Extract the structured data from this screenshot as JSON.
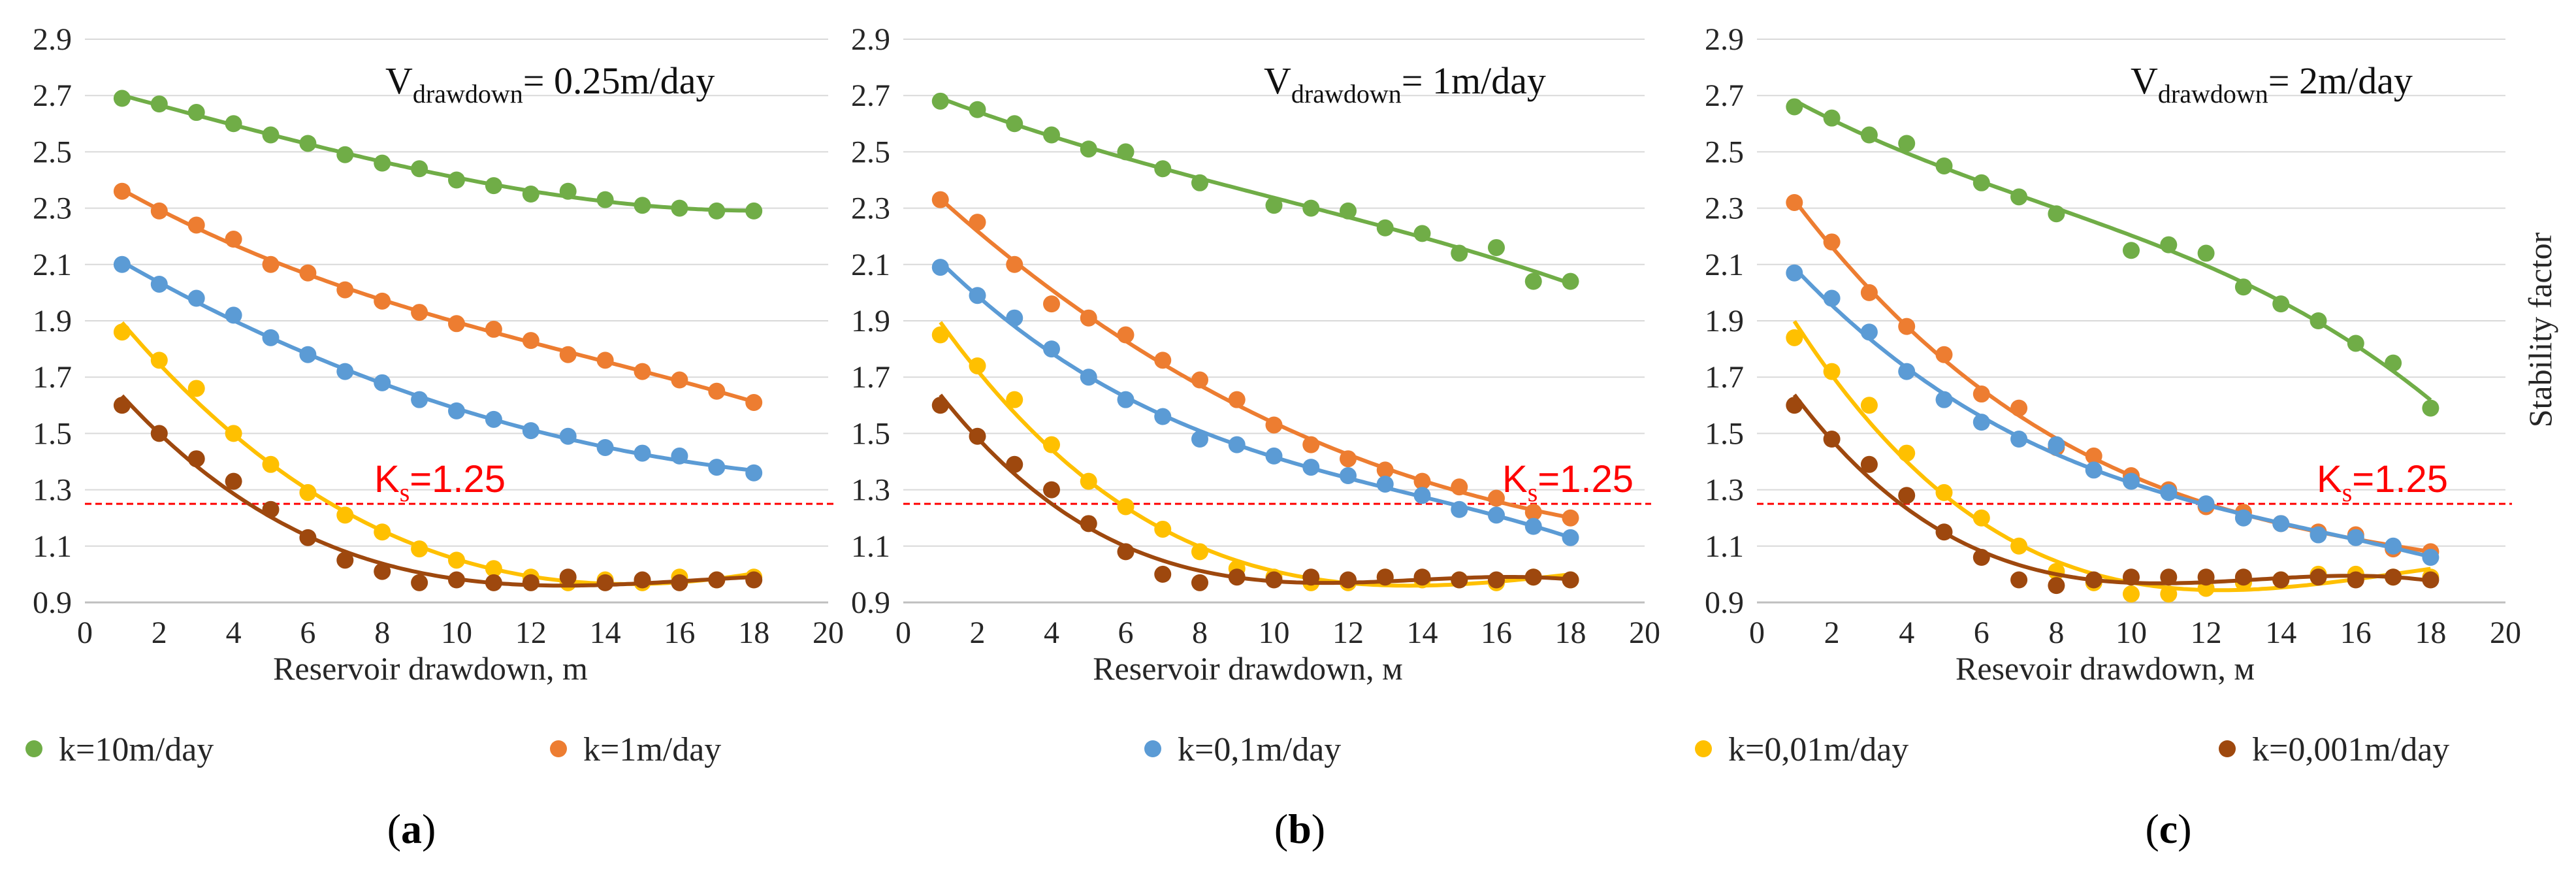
{
  "colors": {
    "k=10m/day": "#70ad47",
    "k=1m/day": "#ed7d31",
    "k=0.1m/day": "#5b9bd5",
    "k=0.01m/day": "#ffc000",
    "k=0.001m/day": "#9e480e",
    "threshold": "#ff0000",
    "grid": "#d9d9d9"
  },
  "legend": [
    {
      "label": "k=10m/day",
      "color_key": "k=10m/day"
    },
    {
      "label": "k=1m/day",
      "color_key": "k=1m/day"
    },
    {
      "label": "k=0,1m/day",
      "color_key": "k=0.1m/day"
    },
    {
      "label": "k=0,01m/day",
      "color_key": "k=0.01m/day"
    },
    {
      "label": "k=0,001m/day",
      "color_key": "k=0.001m/day"
    }
  ],
  "y_axis_label": "Stability factor",
  "chart_data": [
    {
      "type": "scatter",
      "panel_label": "(a)",
      "title_prefix": "V",
      "title_sub": "drawdown",
      "title_value": "= 0.25m/day",
      "xlabel": "Reservoir drawdown, m",
      "ylabel": "Stability factor",
      "xlim": [
        0,
        20
      ],
      "ylim": [
        0.9,
        2.9
      ],
      "xticks": [
        0,
        2,
        4,
        6,
        8,
        10,
        12,
        14,
        16,
        18,
        20
      ],
      "yticks": [
        0.9,
        1.1,
        1.3,
        1.5,
        1.7,
        1.9,
        2.1,
        2.3,
        2.5,
        2.7,
        2.9
      ],
      "threshold": {
        "value": 1.25,
        "label_main": "K",
        "label_sub": "s",
        "label_value": "=1.25"
      },
      "x": [
        1,
        2,
        3,
        4,
        5,
        6,
        7,
        8,
        9,
        10,
        11,
        12,
        13,
        14,
        15,
        16,
        17,
        18
      ],
      "series": [
        {
          "name": "k=10m/day",
          "values": [
            2.69,
            2.67,
            2.64,
            2.6,
            2.56,
            2.53,
            2.49,
            2.46,
            2.44,
            2.4,
            2.38,
            2.35,
            2.36,
            2.33,
            2.31,
            2.3,
            2.29,
            2.29
          ]
        },
        {
          "name": "k=1m/day",
          "values": [
            2.36,
            2.29,
            2.24,
            2.19,
            2.1,
            2.07,
            2.01,
            1.97,
            1.93,
            1.89,
            1.87,
            1.83,
            1.78,
            1.76,
            1.72,
            1.69,
            1.65,
            1.61
          ]
        },
        {
          "name": "k=0.1m/day",
          "values": [
            2.1,
            2.03,
            1.98,
            1.92,
            1.84,
            1.78,
            1.72,
            1.68,
            1.62,
            1.58,
            1.55,
            1.51,
            1.49,
            1.45,
            1.43,
            1.42,
            1.38,
            1.36
          ]
        },
        {
          "name": "k=0.01m/day",
          "values": [
            1.86,
            1.76,
            1.66,
            1.5,
            1.39,
            1.29,
            1.21,
            1.15,
            1.09,
            1.05,
            1.02,
            0.99,
            0.97,
            0.98,
            0.97,
            0.99,
            0.98,
            0.99
          ]
        },
        {
          "name": "k=0.001m/day",
          "values": [
            1.6,
            1.5,
            1.41,
            1.33,
            1.23,
            1.13,
            1.05,
            1.01,
            0.97,
            0.98,
            0.97,
            0.97,
            0.99,
            0.97,
            0.98,
            0.97,
            0.98,
            0.98
          ]
        }
      ]
    },
    {
      "type": "scatter",
      "panel_label": "(b)",
      "title_prefix": "V",
      "title_sub": "drawdown",
      "title_value": "= 1m/day",
      "xlabel": "Reservoir drawdown, м",
      "ylabel": "Stability factor",
      "xlim": [
        0,
        20
      ],
      "ylim": [
        0.9,
        2.9
      ],
      "xticks": [
        0,
        2,
        4,
        6,
        8,
        10,
        12,
        14,
        16,
        18,
        20
      ],
      "yticks": [
        0.9,
        1.1,
        1.3,
        1.5,
        1.7,
        1.9,
        2.1,
        2.3,
        2.5,
        2.7,
        2.9
      ],
      "threshold": {
        "value": 1.25,
        "label_main": "K",
        "label_sub": "s",
        "label_value": "=1.25"
      },
      "x": [
        1,
        2,
        3,
        4,
        5,
        6,
        7,
        8,
        9,
        10,
        11,
        12,
        13,
        14,
        15,
        16,
        17,
        18
      ],
      "series": [
        {
          "name": "k=10m/day",
          "values": [
            2.68,
            2.65,
            2.6,
            2.56,
            2.51,
            2.5,
            2.44,
            2.39,
            null,
            2.31,
            2.3,
            2.29,
            2.23,
            2.21,
            2.14,
            2.16,
            2.04,
            2.04
          ]
        },
        {
          "name": "k=1m/day",
          "values": [
            2.33,
            2.25,
            2.1,
            1.96,
            1.91,
            1.85,
            1.76,
            1.69,
            1.62,
            1.53,
            1.46,
            1.41,
            1.37,
            1.33,
            1.31,
            1.27,
            1.22,
            1.2
          ]
        },
        {
          "name": "k=0.1m/day",
          "values": [
            2.09,
            1.99,
            1.91,
            1.8,
            1.7,
            1.62,
            1.56,
            1.48,
            1.46,
            1.42,
            1.38,
            1.35,
            1.32,
            1.28,
            1.23,
            1.21,
            1.17,
            1.13
          ]
        },
        {
          "name": "k=0.01m/day",
          "values": [
            1.85,
            1.74,
            1.62,
            1.46,
            1.33,
            1.24,
            1.16,
            1.08,
            1.02,
            0.99,
            0.97,
            0.97,
            0.99,
            0.98,
            0.98,
            0.97,
            0.99,
            0.98
          ]
        },
        {
          "name": "k=0.001m/day",
          "values": [
            1.6,
            1.49,
            1.39,
            1.3,
            1.18,
            1.08,
            1.0,
            0.97,
            0.99,
            0.98,
            0.99,
            0.98,
            0.99,
            0.99,
            0.98,
            0.98,
            0.99,
            0.98
          ]
        }
      ]
    },
    {
      "type": "scatter",
      "panel_label": "(c)",
      "title_prefix": "V",
      "title_sub": "drawdown",
      "title_value": "= 2m/day",
      "xlabel": "Resevoir drawdown, м",
      "ylabel": "Stability factor",
      "xlim": [
        0,
        20
      ],
      "ylim": [
        0.9,
        2.9
      ],
      "xticks": [
        0,
        2,
        4,
        6,
        8,
        10,
        12,
        14,
        16,
        18,
        20
      ],
      "yticks": [
        0.9,
        1.1,
        1.3,
        1.5,
        1.7,
        1.9,
        2.1,
        2.3,
        2.5,
        2.7,
        2.9
      ],
      "threshold": {
        "value": 1.25,
        "label_main": "K",
        "label_sub": "s",
        "label_value": "=1.25"
      },
      "x": [
        1,
        2,
        3,
        4,
        5,
        6,
        7,
        8,
        9,
        10,
        11,
        12,
        13,
        14,
        15,
        16,
        17,
        18
      ],
      "series": [
        {
          "name": "k=10m/day",
          "values": [
            2.66,
            2.62,
            2.56,
            2.53,
            2.45,
            2.39,
            2.34,
            2.28,
            null,
            2.15,
            2.17,
            2.14,
            2.02,
            1.96,
            1.9,
            1.82,
            1.75,
            1.59
          ]
        },
        {
          "name": "k=1m/day",
          "values": [
            2.32,
            2.18,
            2.0,
            1.88,
            1.78,
            1.64,
            1.59,
            1.45,
            1.42,
            1.35,
            1.3,
            1.24,
            1.22,
            1.18,
            1.15,
            1.14,
            1.09,
            1.08
          ]
        },
        {
          "name": "k=0.1m/day",
          "values": [
            2.07,
            1.98,
            1.86,
            1.72,
            1.62,
            1.54,
            1.48,
            1.46,
            1.37,
            1.33,
            1.29,
            1.25,
            1.2,
            1.18,
            1.14,
            1.13,
            1.1,
            1.06
          ]
        },
        {
          "name": "k=0.01m/day",
          "values": [
            1.84,
            1.72,
            1.6,
            1.43,
            1.29,
            1.2,
            1.1,
            1.01,
            0.97,
            0.93,
            0.93,
            0.95,
            0.97,
            0.98,
            1.0,
            1.0,
            0.99,
            0.99
          ]
        },
        {
          "name": "k=0.001m/day",
          "values": [
            1.6,
            1.48,
            1.39,
            1.28,
            1.15,
            1.06,
            0.98,
            0.96,
            0.98,
            0.99,
            0.99,
            0.99,
            0.99,
            0.98,
            0.99,
            0.98,
            0.99,
            0.98
          ]
        }
      ]
    }
  ]
}
